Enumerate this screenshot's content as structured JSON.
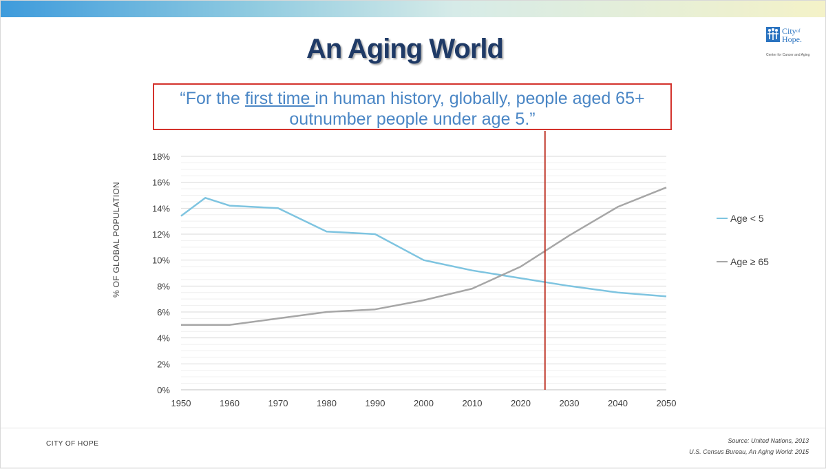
{
  "slide": {
    "title": "An Aging World",
    "quote": {
      "line1_before": "“For the ",
      "line1_underlined": "first time ",
      "line1_after": "in human history, globally, people aged 65+",
      "line2": "outnumber people under age 5.”"
    },
    "logo": {
      "name_line1": "City",
      "name_sup": "of",
      "name_line2": "Hope.",
      "subtitle": "Center for Cancer and Aging"
    },
    "footer": {
      "left": "CITY OF HOPE",
      "source1": "Source: United Nations, 2013",
      "source2": "U.S. Census Bureau, An Aging World: 2015"
    }
  },
  "colors": {
    "under5": "#7ec4e0",
    "over65": "#a6a6a6",
    "marker": "#c0392b",
    "title": "#1f3a66",
    "quote": "#4a86c5"
  },
  "chart_data": {
    "type": "line",
    "title": "",
    "xlabel": "",
    "ylabel": "% OF GLOBAL POPULATION",
    "x_ticks": [
      "1950",
      "1960",
      "1970",
      "1980",
      "1990",
      "2000",
      "2010",
      "2020",
      "2030",
      "2040",
      "2050"
    ],
    "y_ticks": [
      "0%",
      "2%",
      "4%",
      "6%",
      "8%",
      "10%",
      "12%",
      "14%",
      "16%",
      "18%"
    ],
    "xlim": [
      1950,
      2050
    ],
    "ylim": [
      0,
      18
    ],
    "grid": true,
    "legend_position": "right",
    "marker_line_x": 2025,
    "series": [
      {
        "name": "Age < 5",
        "color": "#7ec4e0",
        "points": [
          [
            1950,
            13.4
          ],
          [
            1955,
            14.8
          ],
          [
            1960,
            14.2
          ],
          [
            1970,
            14.0
          ],
          [
            1980,
            12.2
          ],
          [
            1990,
            12.0
          ],
          [
            2000,
            10.0
          ],
          [
            2010,
            9.2
          ],
          [
            2020,
            8.6
          ],
          [
            2030,
            8.0
          ],
          [
            2040,
            7.5
          ],
          [
            2050,
            7.2
          ]
        ]
      },
      {
        "name": "Age ≥ 65",
        "color": "#a6a6a6",
        "points": [
          [
            1950,
            5.0
          ],
          [
            1960,
            5.0
          ],
          [
            1970,
            5.5
          ],
          [
            1980,
            6.0
          ],
          [
            1990,
            6.2
          ],
          [
            2000,
            6.9
          ],
          [
            2010,
            7.8
          ],
          [
            2020,
            9.5
          ],
          [
            2030,
            11.9
          ],
          [
            2040,
            14.1
          ],
          [
            2050,
            15.6
          ]
        ]
      }
    ]
  }
}
